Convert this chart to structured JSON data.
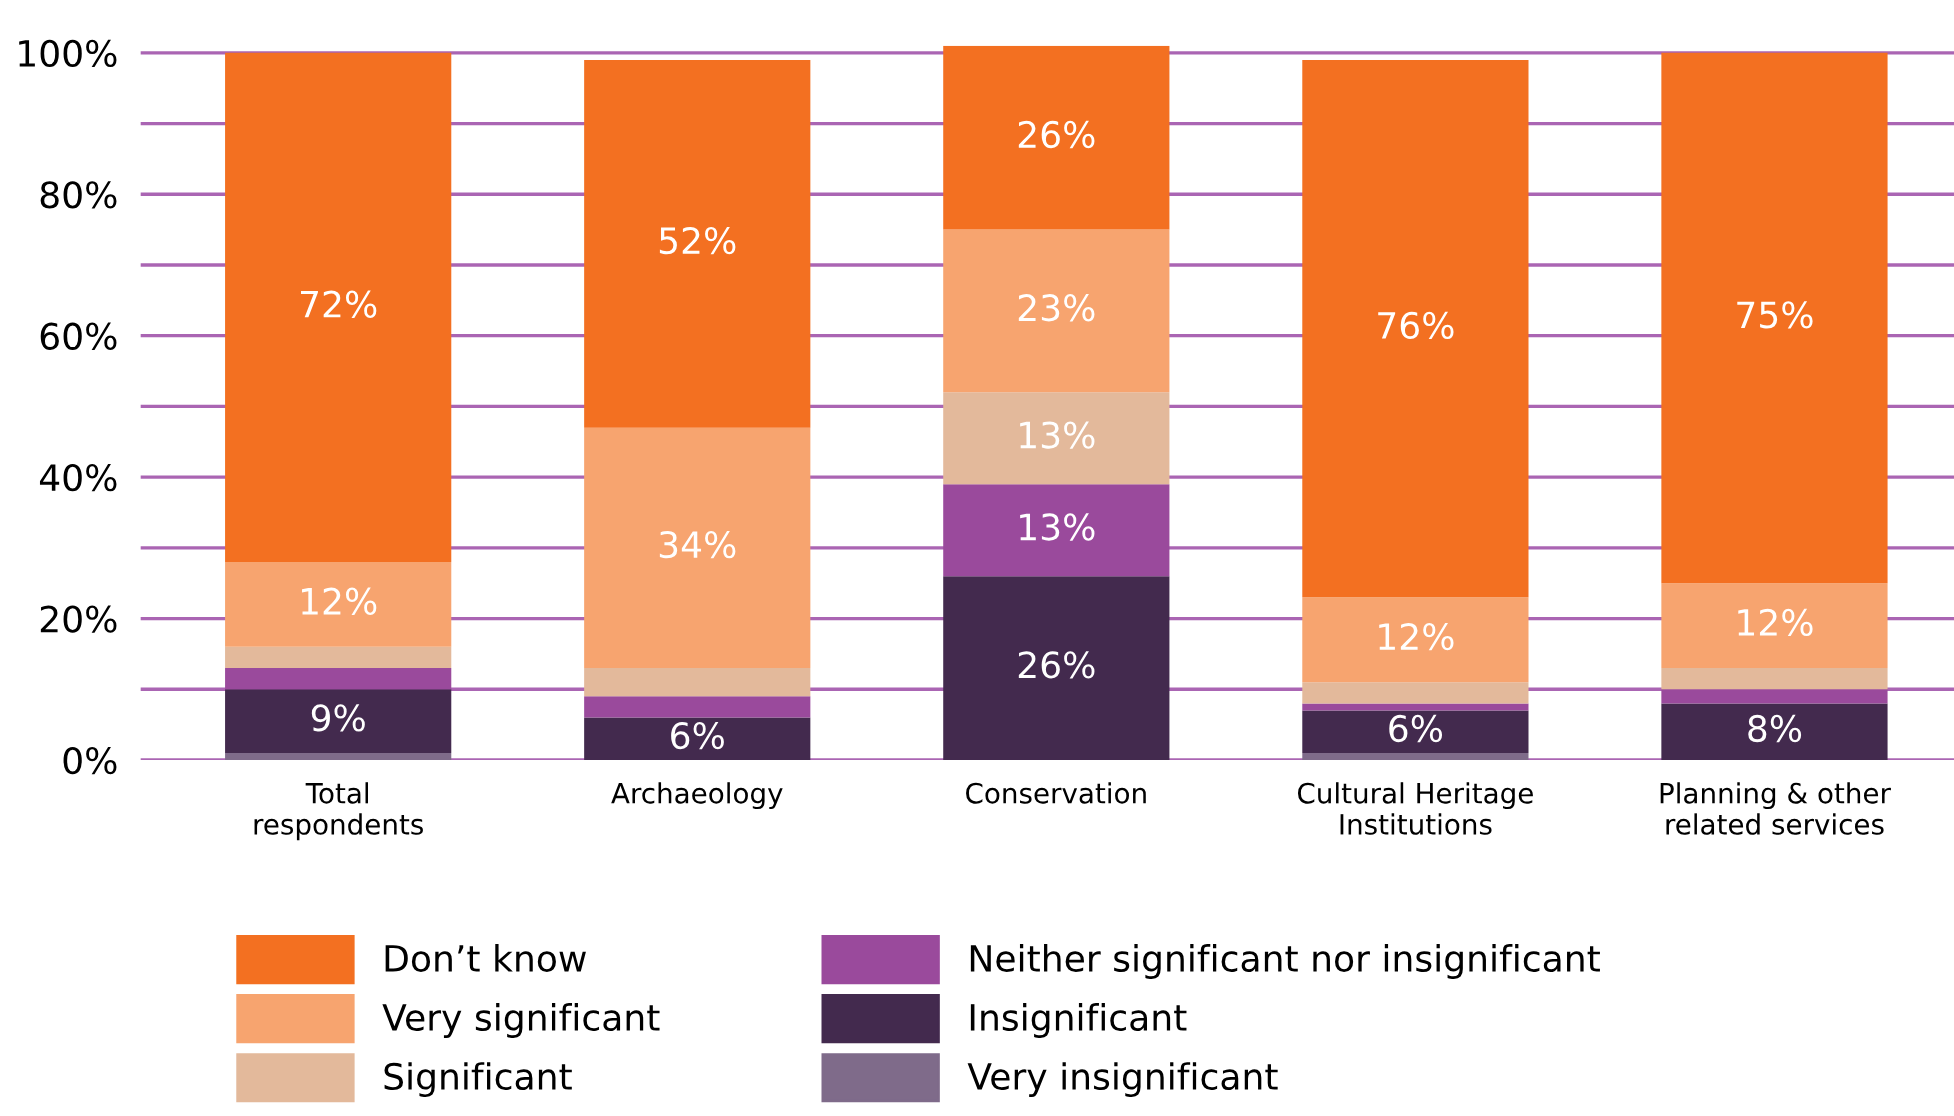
{
  "chart_data": {
    "type": "bar",
    "stacked": true,
    "categories": [
      "Total\nrespondents",
      "Archaeology",
      "Conservation",
      "Cultural Heritage\nInstitutions",
      "Planning & other\nrelated services"
    ],
    "series": [
      {
        "name": "Very insignificant",
        "color": "#7f6b8a",
        "values": [
          1,
          0,
          0,
          1,
          0
        ],
        "value_labels": [
          null,
          null,
          null,
          null,
          null
        ]
      },
      {
        "name": "Insignificant",
        "color": "#432a4e",
        "values": [
          9,
          6,
          26,
          6,
          8
        ],
        "value_labels": [
          "9%",
          "6%",
          "26%",
          "6%",
          "8%"
        ]
      },
      {
        "name": "Neither significant nor insignificant",
        "color": "#9a4a9c",
        "values": [
          3,
          3,
          13,
          1,
          2
        ],
        "value_labels": [
          null,
          null,
          "13%",
          null,
          null
        ]
      },
      {
        "name": "Significant",
        "color": "#e3b99b",
        "values": [
          3,
          4,
          13,
          3,
          3
        ],
        "value_labels": [
          null,
          null,
          "13%",
          null,
          null
        ]
      },
      {
        "name": "Very significant",
        "color": "#f7a46f",
        "values": [
          12,
          34,
          23,
          12,
          12
        ],
        "value_labels": [
          "12%",
          "34%",
          "23%",
          "12%",
          "12%"
        ]
      },
      {
        "name": "Don’t know",
        "color": "#f37021",
        "values": [
          72,
          52,
          26,
          76,
          75
        ],
        "value_labels": [
          "72%",
          "52%",
          "26%",
          "76%",
          "75%"
        ]
      }
    ],
    "ylim": [
      0,
      101
    ],
    "yticks": [
      {
        "value": 0,
        "label": "0%"
      },
      {
        "value": 10,
        "label": null
      },
      {
        "value": 20,
        "label": "20%"
      },
      {
        "value": 30,
        "label": null
      },
      {
        "value": 40,
        "label": "40%"
      },
      {
        "value": 50,
        "label": null
      },
      {
        "value": 60,
        "label": "60%"
      },
      {
        "value": 70,
        "label": null
      },
      {
        "value": 80,
        "label": "80%"
      },
      {
        "value": 90,
        "label": null
      },
      {
        "value": 100,
        "label": "100%"
      }
    ],
    "grid": "y",
    "legend": "bottom"
  }
}
